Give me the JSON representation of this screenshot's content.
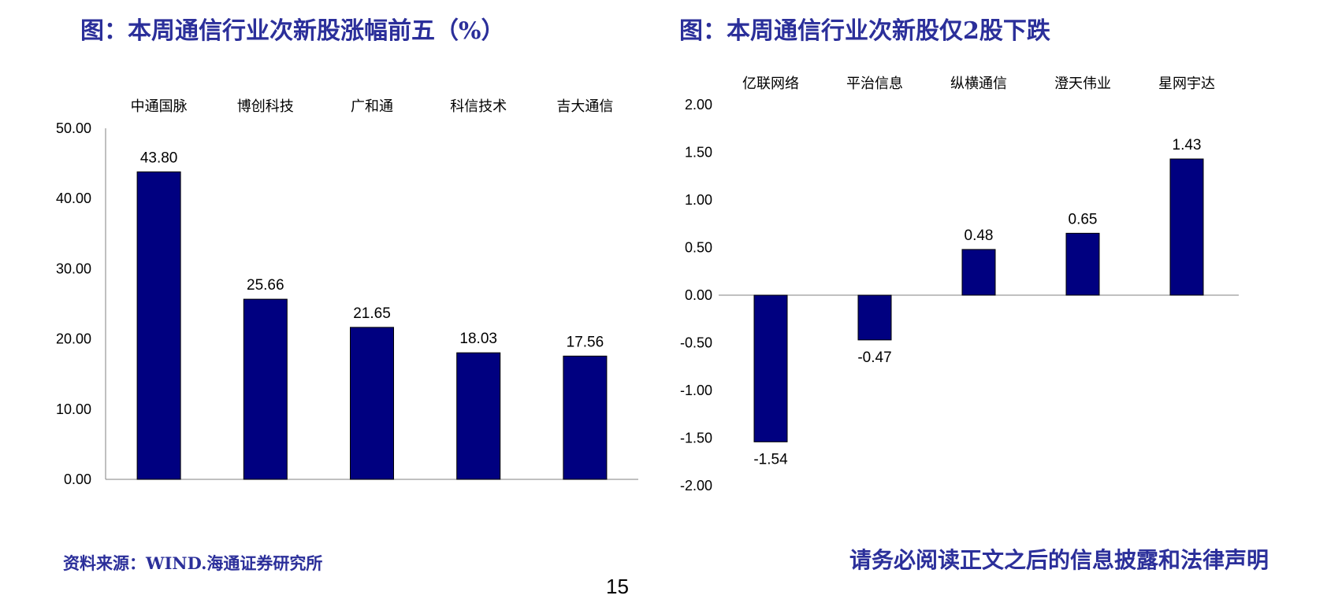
{
  "footer": {
    "source": "资料来源：WIND.海通证券研究所",
    "disclaimer": "请务必阅读正文之后的信息披露和法律声明",
    "page_number": "15"
  },
  "colors": {
    "bar": "#000080",
    "title": "#2b2f9a",
    "axis": "#808080"
  },
  "chart_data": [
    {
      "type": "bar",
      "title": "图：本周通信行业次新股涨幅前五（%）",
      "categories": [
        "中通国脉",
        "博创科技",
        "广和通",
        "科信技术",
        "吉大通信"
      ],
      "values": [
        43.8,
        25.66,
        21.65,
        18.03,
        17.56
      ],
      "data_labels": [
        "43.80",
        "25.66",
        "21.65",
        "18.03",
        "17.56"
      ],
      "yticks": [
        "0.00",
        "10.00",
        "20.00",
        "30.00",
        "40.00",
        "50.00"
      ],
      "ylim": [
        0,
        50
      ],
      "category_labels_position": "top",
      "grid": false
    },
    {
      "type": "bar",
      "title": "图：本周通信行业次新股仅2股下跌",
      "categories": [
        "亿联网络",
        "平治信息",
        "纵横通信",
        "澄天伟业",
        "星网宇达"
      ],
      "values": [
        -1.54,
        -0.47,
        0.48,
        0.65,
        1.43
      ],
      "data_labels": [
        "-1.54",
        "-0.47",
        "0.48",
        "0.65",
        "1.43"
      ],
      "yticks": [
        "-2.00",
        "-1.50",
        "-1.00",
        "-0.50",
        "0.00",
        "0.50",
        "1.00",
        "1.50",
        "2.00"
      ],
      "ylim": [
        -2,
        2
      ],
      "category_labels_position": "top",
      "grid": false
    }
  ]
}
